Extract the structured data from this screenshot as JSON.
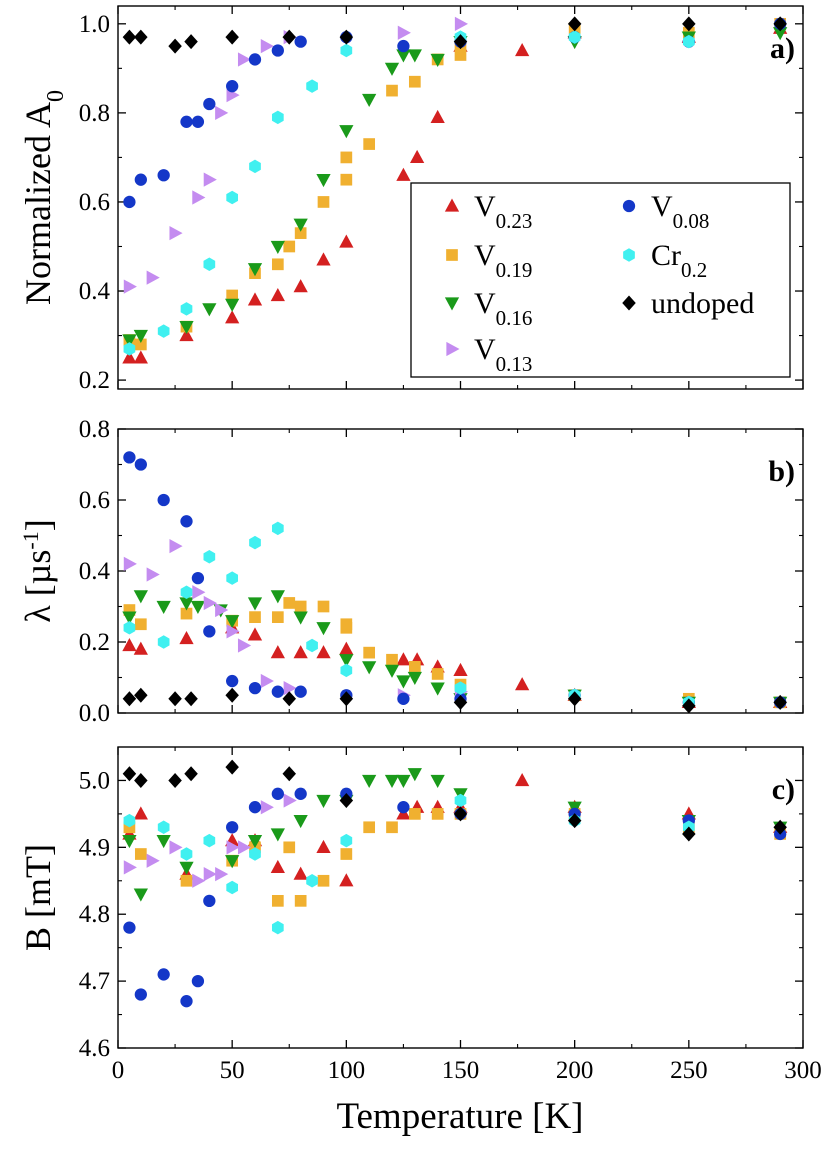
{
  "figure": {
    "xlabel": "Temperature [K]",
    "xlim": [
      0,
      300
    ],
    "xticks": [
      "0",
      "50",
      "100",
      "150",
      "200",
      "250",
      "300"
    ]
  },
  "legend": {
    "entries": [
      {
        "base": "V",
        "sub": "0.23",
        "series_key": "V023"
      },
      {
        "base": "V",
        "sub": "0.19",
        "series_key": "V019"
      },
      {
        "base": "V",
        "sub": "0.16",
        "series_key": "V016"
      },
      {
        "base": "V",
        "sub": "0.13",
        "series_key": "V013"
      },
      {
        "base": "V",
        "sub": "0.08",
        "series_key": "V008"
      },
      {
        "base": "Cr",
        "sub": "0.2",
        "series_key": "Cr02"
      },
      {
        "base": "undoped",
        "sub": "",
        "series_key": "undoped"
      }
    ]
  },
  "series_styles": {
    "V023": {
      "color": "#d42020",
      "marker": "triangle-up"
    },
    "V019": {
      "color": "#f0b030",
      "marker": "square"
    },
    "V016": {
      "color": "#1a9a1a",
      "marker": "triangle-down"
    },
    "V013": {
      "color": "#c48cf0",
      "marker": "triangle-right"
    },
    "V008": {
      "color": "#1437c8",
      "marker": "circle"
    },
    "Cr02": {
      "color": "#40f0f0",
      "marker": "hexagon"
    },
    "undoped": {
      "color": "#000000",
      "marker": "diamond"
    }
  },
  "chart_data": [
    {
      "type": "scatter",
      "panel_label": "a)",
      "ylabel_base": "Normalized A",
      "ylabel_sub": "0",
      "xlabel": "Temperature [K]",
      "xlim": [
        0,
        300
      ],
      "ylim": [
        0.18,
        1.04
      ],
      "yticks": [
        "0.2",
        "0.4",
        "0.6",
        "0.8",
        "1.0"
      ],
      "series": [
        {
          "key": "V023",
          "name": "V0.23",
          "x": [
            5,
            10,
            30,
            50,
            60,
            70,
            80,
            90,
            100,
            125,
            131,
            140,
            150,
            177,
            200,
            250,
            290
          ],
          "y": [
            0.25,
            0.25,
            0.3,
            0.34,
            0.38,
            0.39,
            0.41,
            0.47,
            0.51,
            0.66,
            0.7,
            0.79,
            0.95,
            0.94,
            0.98,
            0.97,
            0.99
          ]
        },
        {
          "key": "V019",
          "name": "V0.19",
          "x": [
            5,
            10,
            30,
            50,
            60,
            70,
            75,
            80,
            90,
            100,
            100,
            110,
            120,
            130,
            140,
            150,
            150,
            200,
            250,
            290
          ],
          "y": [
            0.29,
            0.28,
            0.32,
            0.39,
            0.44,
            0.46,
            0.5,
            0.53,
            0.6,
            0.65,
            0.7,
            0.73,
            0.85,
            0.87,
            0.92,
            0.93,
            0.95,
            0.99,
            0.98,
            1.0
          ]
        },
        {
          "key": "V016",
          "name": "V0.16",
          "x": [
            5,
            10,
            30,
            40,
            50,
            60,
            70,
            80,
            90,
            100,
            110,
            120,
            125,
            130,
            140,
            150,
            200,
            250,
            290
          ],
          "y": [
            0.29,
            0.3,
            0.32,
            0.36,
            0.37,
            0.45,
            0.5,
            0.55,
            0.65,
            0.76,
            0.83,
            0.9,
            0.93,
            0.93,
            0.92,
            0.96,
            0.96,
            0.97,
            0.98
          ]
        },
        {
          "key": "V013",
          "name": "V0.13",
          "x": [
            5,
            15,
            25,
            35,
            40,
            45,
            50,
            55,
            65,
            75,
            125,
            150
          ],
          "y": [
            0.41,
            0.43,
            0.53,
            0.61,
            0.65,
            0.8,
            0.84,
            0.92,
            0.95,
            0.97,
            0.98,
            1.0
          ]
        },
        {
          "key": "V008",
          "name": "V0.08",
          "x": [
            5,
            10,
            20,
            30,
            35,
            40,
            50,
            60,
            70,
            80,
            100,
            125,
            150,
            200,
            250,
            290
          ],
          "y": [
            0.6,
            0.65,
            0.66,
            0.78,
            0.78,
            0.82,
            0.86,
            0.92,
            0.94,
            0.96,
            0.97,
            0.95,
            0.96,
            0.97,
            0.96,
            1.0
          ]
        },
        {
          "key": "Cr02",
          "name": "Cr0.2",
          "x": [
            5,
            20,
            30,
            40,
            50,
            60,
            70,
            85,
            100,
            150,
            200,
            250
          ],
          "y": [
            0.27,
            0.31,
            0.36,
            0.46,
            0.61,
            0.68,
            0.79,
            0.86,
            0.94,
            0.97,
            0.97,
            0.96
          ]
        },
        {
          "key": "undoped",
          "name": "undoped",
          "x": [
            5,
            10,
            25,
            32,
            50,
            75,
            100,
            150,
            200,
            250,
            290
          ],
          "y": [
            0.97,
            0.97,
            0.95,
            0.96,
            0.97,
            0.97,
            0.97,
            0.96,
            1.0,
            1.0,
            1.0
          ]
        }
      ]
    },
    {
      "type": "scatter",
      "panel_label": "b)",
      "ylabel_base": "λ [µs",
      "ylabel_sup": "-1",
      "ylabel_tail": "]",
      "xlabel": "Temperature [K]",
      "xlim": [
        0,
        300
      ],
      "ylim": [
        0,
        0.8
      ],
      "yticks": [
        "0.0",
        "0.2",
        "0.4",
        "0.6",
        "0.8"
      ],
      "series": [
        {
          "key": "V023",
          "name": "V0.23",
          "x": [
            5,
            10,
            30,
            50,
            60,
            70,
            80,
            90,
            100,
            125,
            131,
            140,
            150,
            177,
            200,
            250,
            290
          ],
          "y": [
            0.19,
            0.18,
            0.21,
            0.24,
            0.22,
            0.17,
            0.17,
            0.17,
            0.18,
            0.15,
            0.15,
            0.13,
            0.12,
            0.08,
            0.05,
            0.03,
            0.03
          ]
        },
        {
          "key": "V019",
          "name": "V0.19",
          "x": [
            5,
            10,
            30,
            50,
            60,
            70,
            75,
            80,
            90,
            100,
            100,
            110,
            120,
            130,
            140,
            150,
            200,
            250,
            290
          ],
          "y": [
            0.29,
            0.25,
            0.28,
            0.26,
            0.27,
            0.27,
            0.31,
            0.3,
            0.3,
            0.25,
            0.24,
            0.17,
            0.15,
            0.13,
            0.11,
            0.08,
            0.05,
            0.04,
            0.03
          ]
        },
        {
          "key": "V016",
          "name": "V0.16",
          "x": [
            5,
            10,
            20,
            30,
            35,
            45,
            50,
            60,
            70,
            80,
            90,
            100,
            110,
            120,
            125,
            130,
            140,
            150,
            200,
            250,
            290
          ],
          "y": [
            0.27,
            0.33,
            0.3,
            0.31,
            0.3,
            0.29,
            0.26,
            0.31,
            0.33,
            0.27,
            0.24,
            0.15,
            0.13,
            0.12,
            0.09,
            0.1,
            0.07,
            0.04,
            0.05,
            0.03,
            0.03
          ]
        },
        {
          "key": "V013",
          "name": "V0.13",
          "x": [
            5,
            15,
            25,
            35,
            40,
            45,
            50,
            55,
            65,
            75,
            125,
            150
          ],
          "y": [
            0.42,
            0.39,
            0.47,
            0.34,
            0.31,
            0.29,
            0.23,
            0.19,
            0.09,
            0.07,
            0.05,
            0.06
          ]
        },
        {
          "key": "V008",
          "name": "V0.08",
          "x": [
            5,
            10,
            20,
            30,
            35,
            40,
            50,
            60,
            70,
            80,
            100,
            125,
            150,
            200,
            250,
            290
          ],
          "y": [
            0.72,
            0.7,
            0.6,
            0.54,
            0.38,
            0.23,
            0.09,
            0.07,
            0.06,
            0.06,
            0.05,
            0.04,
            0.04,
            0.05,
            0.03,
            0.03
          ]
        },
        {
          "key": "Cr02",
          "name": "Cr0.2",
          "x": [
            5,
            20,
            30,
            40,
            50,
            60,
            70,
            85,
            100,
            150,
            200,
            250
          ],
          "y": [
            0.24,
            0.2,
            0.34,
            0.44,
            0.38,
            0.48,
            0.52,
            0.19,
            0.12,
            0.07,
            0.05,
            0.03
          ]
        },
        {
          "key": "undoped",
          "name": "undoped",
          "x": [
            5,
            10,
            25,
            32,
            50,
            75,
            100,
            150,
            200,
            250,
            290
          ],
          "y": [
            0.04,
            0.05,
            0.04,
            0.04,
            0.05,
            0.04,
            0.04,
            0.03,
            0.04,
            0.02,
            0.03
          ]
        }
      ]
    },
    {
      "type": "scatter",
      "panel_label": "c)",
      "ylabel_base": "B [mT]",
      "xlabel": "Temperature [K]",
      "xlim": [
        0,
        300
      ],
      "ylim": [
        4.6,
        5.05
      ],
      "yticks": [
        "4.6",
        "4.7",
        "4.8",
        "4.9",
        "5.0"
      ],
      "series": [
        {
          "key": "V023",
          "name": "V0.23",
          "x": [
            5,
            10,
            30,
            50,
            60,
            70,
            80,
            90,
            100,
            125,
            131,
            140,
            150,
            177,
            200,
            250,
            290
          ],
          "y": [
            4.92,
            4.95,
            4.86,
            4.91,
            4.91,
            4.87,
            4.86,
            4.9,
            4.85,
            4.95,
            4.96,
            4.96,
            4.96,
            5.0,
            4.96,
            4.95,
            4.93
          ]
        },
        {
          "key": "V019",
          "name": "V0.19",
          "x": [
            5,
            10,
            30,
            50,
            60,
            70,
            75,
            80,
            90,
            100,
            110,
            120,
            130,
            140,
            150,
            200,
            250,
            290
          ],
          "y": [
            4.93,
            4.89,
            4.85,
            4.88,
            4.9,
            4.82,
            4.9,
            4.82,
            4.85,
            4.89,
            4.93,
            4.93,
            4.95,
            4.95,
            4.95,
            4.95,
            4.93,
            4.92
          ]
        },
        {
          "key": "V016",
          "name": "V0.16",
          "x": [
            5,
            10,
            20,
            30,
            50,
            60,
            70,
            80,
            90,
            100,
            110,
            120,
            125,
            130,
            140,
            150,
            200,
            250,
            290
          ],
          "y": [
            4.91,
            4.83,
            4.91,
            4.87,
            4.88,
            4.91,
            4.92,
            4.94,
            4.97,
            4.97,
            5.0,
            5.0,
            5.0,
            5.01,
            5.0,
            4.98,
            4.96,
            4.94,
            4.93
          ]
        },
        {
          "key": "V013",
          "name": "V0.13",
          "x": [
            5,
            15,
            25,
            35,
            40,
            45,
            50,
            55,
            65,
            75
          ],
          "y": [
            4.87,
            4.88,
            4.9,
            4.85,
            4.86,
            4.86,
            4.9,
            4.9,
            4.96,
            4.97
          ]
        },
        {
          "key": "V008",
          "name": "V0.08",
          "x": [
            5,
            10,
            20,
            30,
            35,
            40,
            50,
            60,
            70,
            80,
            100,
            125,
            150,
            200,
            250,
            290
          ],
          "y": [
            4.78,
            4.68,
            4.71,
            4.67,
            4.7,
            4.82,
            4.93,
            4.96,
            4.98,
            4.98,
            4.98,
            4.96,
            4.95,
            4.95,
            4.94,
            4.92
          ]
        },
        {
          "key": "Cr02",
          "name": "Cr0.2",
          "x": [
            5,
            20,
            30,
            40,
            50,
            60,
            70,
            85,
            100,
            150,
            200,
            250
          ],
          "y": [
            4.94,
            4.93,
            4.89,
            4.91,
            4.84,
            4.89,
            4.78,
            4.85,
            4.91,
            4.97,
            4.94,
            4.93
          ]
        },
        {
          "key": "undoped",
          "name": "undoped",
          "x": [
            5,
            10,
            25,
            32,
            50,
            75,
            100,
            150,
            200,
            250,
            290
          ],
          "y": [
            5.01,
            5.0,
            5.0,
            5.01,
            5.02,
            5.01,
            4.97,
            4.95,
            4.94,
            4.92,
            4.93
          ]
        }
      ]
    }
  ]
}
